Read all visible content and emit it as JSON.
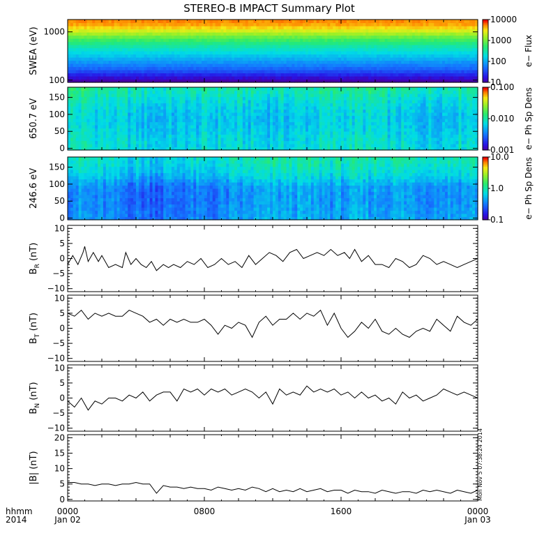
{
  "title": "STEREO-B IMPACT Summary Plot",
  "timestamp": "Mon Nov  5 07:38:24 2014",
  "time_axis": {
    "row_label": "hhmm",
    "year_label": "2014",
    "ticks": [
      {
        "hour": 0,
        "label": "0000",
        "sublabel": "Jan 02"
      },
      {
        "hour": 8,
        "label": "0800",
        "sublabel": ""
      },
      {
        "hour": 16,
        "label": "1600",
        "sublabel": ""
      },
      {
        "hour": 24,
        "label": "0000",
        "sublabel": "Jan 03"
      }
    ],
    "range_hours": [
      0,
      24
    ]
  },
  "chart_data": [
    {
      "type": "heatmap",
      "id": "swea",
      "ylabel": "SWEA (eV)",
      "ylog": true,
      "ylim": [
        90,
        1800
      ],
      "yticks": [
        {
          "v": 100,
          "t": "100"
        },
        {
          "v": 1000,
          "t": "1000"
        }
      ],
      "colorbar": {
        "label": "e− Flux",
        "log": true,
        "range": [
          10,
          10000
        ],
        "ticks": [
          {
            "v": 10,
            "t": "10"
          },
          {
            "v": 100,
            "t": "100"
          },
          {
            "v": 1000,
            "t": "1000"
          },
          {
            "v": 10000,
            "t": "10000"
          }
        ]
      },
      "profile": [
        0.92,
        0.9,
        0.86,
        0.8,
        0.73,
        0.66,
        0.6,
        0.55,
        0.5,
        0.46,
        0.42,
        0.38,
        0.34,
        0.3,
        0.26,
        0.22,
        0.17,
        0.11,
        0.05,
        0.0
      ]
    },
    {
      "type": "heatmap",
      "id": "pad650",
      "ylabel": "650.7 eV",
      "ylim": [
        -5,
        180
      ],
      "yticks": [
        {
          "v": 0,
          "t": "0"
        },
        {
          "v": 50,
          "t": "50"
        },
        {
          "v": 100,
          "t": "100"
        },
        {
          "v": 150,
          "t": "150"
        }
      ],
      "colorbar": {
        "label": "e− Ph Sp Dens",
        "log": true,
        "range": [
          0.001,
          0.1
        ],
        "ticks": [
          {
            "v": 0.001,
            "t": "0.001"
          },
          {
            "v": 0.01,
            "t": "0.010"
          },
          {
            "v": 0.1,
            "t": "0.100"
          }
        ]
      },
      "profile": [
        0.45,
        0.44,
        0.43,
        0.42,
        0.4,
        0.38,
        0.37,
        0.36,
        0.36,
        0.38,
        0.4,
        0.43,
        0.46,
        0.5,
        0.54,
        0.57
      ],
      "time_mod": [
        0.55,
        0.5,
        0.45,
        0.42,
        0.38,
        0.35,
        0.35,
        0.37,
        0.4,
        0.42,
        0.4,
        0.38,
        0.36,
        0.38,
        0.42,
        0.45,
        0.47,
        0.48,
        0.46,
        0.42,
        0.38,
        0.36,
        0.38,
        0.45,
        0.5
      ]
    },
    {
      "type": "heatmap",
      "id": "pad246",
      "ylabel": "246.6 eV",
      "ylim": [
        -5,
        180
      ],
      "yticks": [
        {
          "v": 0,
          "t": "0"
        },
        {
          "v": 50,
          "t": "50"
        },
        {
          "v": 100,
          "t": "100"
        },
        {
          "v": 150,
          "t": "150"
        }
      ],
      "colorbar": {
        "label": "e− Ph Sp Dens",
        "log": true,
        "range": [
          0.1,
          10.0
        ],
        "ticks": [
          {
            "v": 0.1,
            "t": "0.1"
          },
          {
            "v": 1.0,
            "t": "1.0"
          },
          {
            "v": 10.0,
            "t": "10.0"
          }
        ]
      },
      "profile": [
        0.3,
        0.29,
        0.28,
        0.27,
        0.26,
        0.26,
        0.26,
        0.27,
        0.28,
        0.34,
        0.42,
        0.48,
        0.52,
        0.55,
        0.58,
        0.6
      ],
      "time_mod": [
        0.35,
        0.3,
        0.26,
        0.22,
        0.18,
        0.16,
        0.18,
        0.22,
        0.2,
        0.24,
        0.3,
        0.35,
        0.38,
        0.4,
        0.38,
        0.36,
        0.35,
        0.36,
        0.38,
        0.4,
        0.38,
        0.36,
        0.34,
        0.36,
        0.38
      ]
    },
    {
      "type": "line",
      "id": "br",
      "ylabel_main": "B",
      "ylabel_sub": "R",
      "ylabel_unit": " (nT)",
      "ylim": [
        -11,
        11
      ],
      "yticks": [
        {
          "v": -10,
          "t": "−10"
        },
        {
          "v": -5,
          "t": "−5"
        },
        {
          "v": 0,
          "t": "0"
        },
        {
          "v": 5,
          "t": "5"
        },
        {
          "v": 10,
          "t": "10"
        }
      ],
      "x": [
        0,
        0.3,
        0.6,
        0.9,
        1.0,
        1.2,
        1.5,
        1.8,
        2.0,
        2.4,
        2.8,
        3.2,
        3.4,
        3.7,
        4.0,
        4.3,
        4.6,
        4.9,
        5.2,
        5.6,
        5.9,
        6.2,
        6.6,
        7.0,
        7.4,
        7.8,
        8.2,
        8.6,
        9.0,
        9.4,
        9.8,
        10.2,
        10.6,
        11.0,
        11.4,
        11.8,
        12.2,
        12.6,
        13.0,
        13.4,
        13.8,
        14.2,
        14.6,
        15.0,
        15.4,
        15.8,
        16.2,
        16.5,
        16.8,
        17.2,
        17.6,
        18.0,
        18.4,
        18.8,
        19.2,
        19.6,
        20.0,
        20.4,
        20.8,
        21.2,
        21.6,
        22.0,
        22.4,
        22.8,
        23.2,
        23.6,
        24.0
      ],
      "y": [
        -2,
        1,
        -2,
        2,
        4,
        -1,
        2,
        -1,
        1,
        -3,
        -2,
        -3,
        2,
        -2,
        0,
        -2,
        -3,
        -1,
        -4,
        -2,
        -3,
        -2,
        -3,
        -1,
        -2,
        0,
        -3,
        -2,
        0,
        -2,
        -1,
        -3,
        1,
        -2,
        0,
        2,
        1,
        -1,
        2,
        3,
        0,
        1,
        2,
        1,
        3,
        1,
        2,
        0,
        3,
        -1,
        1,
        -2,
        -2,
        -3,
        0,
        -1,
        -3,
        -2,
        1,
        0,
        -2,
        -1,
        -2,
        -3,
        -2,
        -1,
        0
      ]
    },
    {
      "type": "line",
      "id": "bt",
      "ylabel_main": "B",
      "ylabel_sub": "T",
      "ylabel_unit": " (nT)",
      "ylim": [
        -11,
        11
      ],
      "yticks": [
        {
          "v": -10,
          "t": "−10"
        },
        {
          "v": -5,
          "t": "−5"
        },
        {
          "v": 0,
          "t": "0"
        },
        {
          "v": 5,
          "t": "5"
        },
        {
          "v": 10,
          "t": "10"
        }
      ],
      "x": [
        0,
        0.4,
        0.8,
        1.2,
        1.6,
        2.0,
        2.4,
        2.8,
        3.2,
        3.6,
        4.0,
        4.4,
        4.8,
        5.2,
        5.6,
        6.0,
        6.4,
        6.8,
        7.2,
        7.6,
        8.0,
        8.4,
        8.8,
        9.2,
        9.6,
        10.0,
        10.4,
        10.8,
        11.2,
        11.6,
        12.0,
        12.4,
        12.8,
        13.2,
        13.6,
        14.0,
        14.4,
        14.8,
        15.2,
        15.6,
        16.0,
        16.4,
        16.8,
        17.2,
        17.6,
        18.0,
        18.4,
        18.8,
        19.2,
        19.6,
        20.0,
        20.4,
        20.8,
        21.2,
        21.6,
        22.0,
        22.4,
        22.8,
        23.2,
        23.6,
        24.0
      ],
      "y": [
        5,
        4,
        6,
        3,
        5,
        4,
        5,
        4,
        4,
        6,
        5,
        4,
        2,
        3,
        1,
        3,
        2,
        3,
        2,
        2,
        3,
        1,
        -2,
        1,
        0,
        2,
        1,
        -3,
        2,
        4,
        1,
        3,
        3,
        5,
        3,
        5,
        4,
        6,
        1,
        5,
        0,
        -3,
        -1,
        2,
        0,
        3,
        -1,
        -2,
        0,
        -2,
        -3,
        -1,
        0,
        -1,
        3,
        1,
        -1,
        4,
        2,
        1,
        3
      ]
    },
    {
      "type": "line",
      "id": "bn",
      "ylabel_main": "B",
      "ylabel_sub": "N",
      "ylabel_unit": " (nT)",
      "ylim": [
        -11,
        11
      ],
      "yticks": [
        {
          "v": -10,
          "t": "−10"
        },
        {
          "v": -5,
          "t": "−5"
        },
        {
          "v": 0,
          "t": "0"
        },
        {
          "v": 5,
          "t": "5"
        },
        {
          "v": 10,
          "t": "10"
        }
      ],
      "x": [
        0,
        0.4,
        0.8,
        1.2,
        1.6,
        2.0,
        2.4,
        2.8,
        3.2,
        3.6,
        4.0,
        4.4,
        4.8,
        5.2,
        5.6,
        6.0,
        6.4,
        6.8,
        7.2,
        7.6,
        8.0,
        8.4,
        8.8,
        9.2,
        9.6,
        10.0,
        10.4,
        10.8,
        11.2,
        11.6,
        12.0,
        12.4,
        12.8,
        13.2,
        13.6,
        14.0,
        14.4,
        14.8,
        15.2,
        15.6,
        16.0,
        16.4,
        16.8,
        17.2,
        17.6,
        18.0,
        18.4,
        18.8,
        19.2,
        19.6,
        20.0,
        20.4,
        20.8,
        21.2,
        21.6,
        22.0,
        22.4,
        22.8,
        23.2,
        23.6,
        24.0
      ],
      "y": [
        -1,
        -3,
        0,
        -4,
        -1,
        -2,
        0,
        0,
        -1,
        1,
        0,
        2,
        -1,
        1,
        2,
        2,
        -1,
        3,
        2,
        3,
        1,
        3,
        2,
        3,
        1,
        2,
        3,
        2,
        0,
        2,
        -2,
        3,
        1,
        2,
        1,
        4,
        2,
        3,
        2,
        3,
        1,
        2,
        0,
        2,
        0,
        1,
        -1,
        0,
        -2,
        2,
        0,
        1,
        -1,
        0,
        1,
        3,
        2,
        1,
        2,
        1,
        0
      ]
    },
    {
      "type": "line",
      "id": "bmag",
      "ylabel_main": "|B| (nT)",
      "ylim": [
        -0.5,
        21
      ],
      "yticks": [
        {
          "v": 0,
          "t": "0"
        },
        {
          "v": 5,
          "t": "5"
        },
        {
          "v": 10,
          "t": "10"
        },
        {
          "v": 15,
          "t": "15"
        },
        {
          "v": 20,
          "t": "20"
        }
      ],
      "x": [
        0,
        0.4,
        0.8,
        1.2,
        1.6,
        2.0,
        2.4,
        2.8,
        3.2,
        3.6,
        4.0,
        4.4,
        4.8,
        5.2,
        5.6,
        6.0,
        6.4,
        6.8,
        7.2,
        7.6,
        8.0,
        8.4,
        8.8,
        9.2,
        9.6,
        10.0,
        10.4,
        10.8,
        11.2,
        11.6,
        12.0,
        12.4,
        12.8,
        13.2,
        13.6,
        14.0,
        14.4,
        14.8,
        15.2,
        15.6,
        16.0,
        16.4,
        16.8,
        17.2,
        17.6,
        18.0,
        18.4,
        18.8,
        19.2,
        19.6,
        20.0,
        20.4,
        20.8,
        21.2,
        21.6,
        22.0,
        22.4,
        22.8,
        23.2,
        23.6,
        24.0
      ],
      "y": [
        5.5,
        5.5,
        5.0,
        5.0,
        4.5,
        5.0,
        5.0,
        4.5,
        5.0,
        5.0,
        5.5,
        5.0,
        5.0,
        2.0,
        4.5,
        4.0,
        4.0,
        3.5,
        4.0,
        3.5,
        3.5,
        3.0,
        4.0,
        3.5,
        3.0,
        3.5,
        3.0,
        4.0,
        3.5,
        2.5,
        3.5,
        2.5,
        3.0,
        2.5,
        3.5,
        2.5,
        3.0,
        3.5,
        2.5,
        3.0,
        3.0,
        2.0,
        3.0,
        2.5,
        2.5,
        2.0,
        3.0,
        2.5,
        2.0,
        2.5,
        2.5,
        2.0,
        3.0,
        2.5,
        3.0,
        2.5,
        2.0,
        3.0,
        2.5,
        2.0,
        3.0
      ]
    }
  ]
}
